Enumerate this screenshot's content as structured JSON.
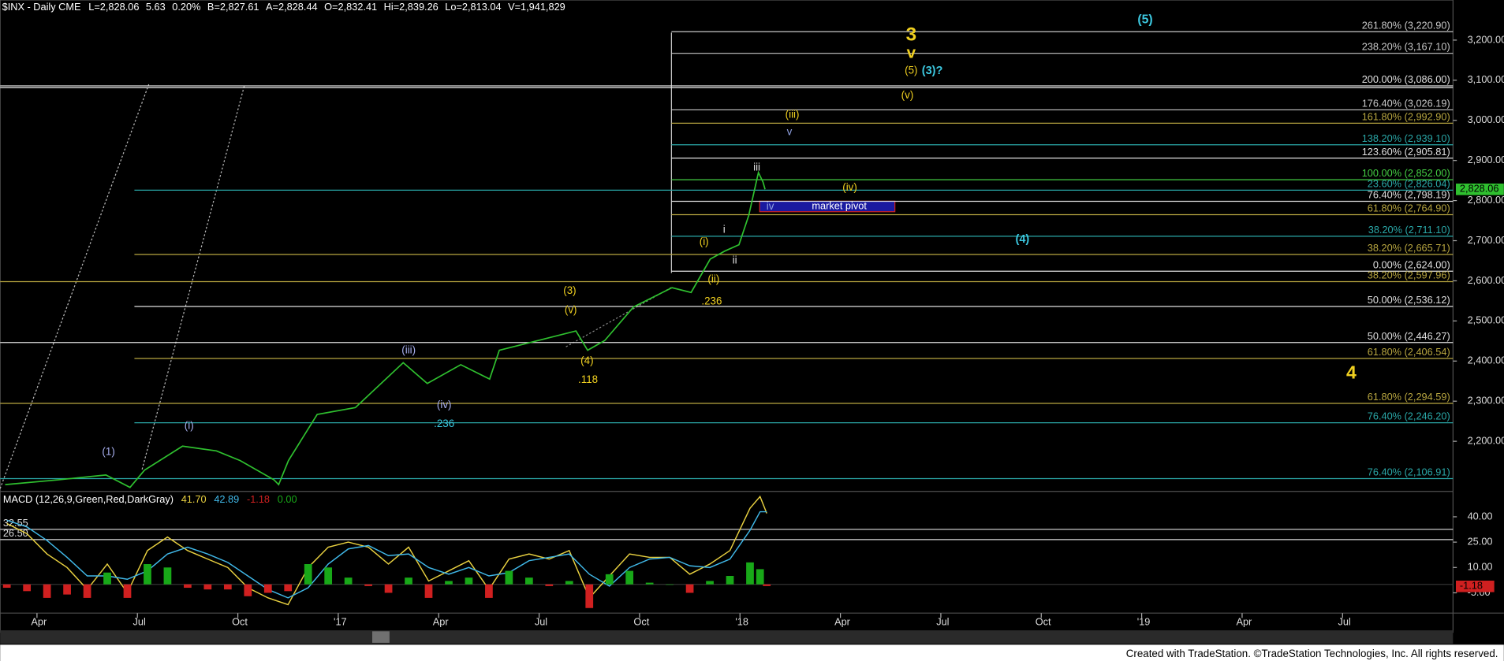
{
  "chart_data": [
    {
      "type": "line",
      "title": "$INX - Daily  CME",
      "header_fields": [
        "L=2,828.06",
        "5.63",
        "0.20%",
        "B=2,827.61",
        "A=2,828.44",
        "O=2,832.41",
        "Hi=2,839.26",
        "Lo=2,813.04",
        "V=1,941,829"
      ],
      "x": [
        2.05,
        3.63,
        5.06,
        5.78,
        6.21,
        7.35,
        8.36,
        9.07,
        10.08,
        10.22,
        10.51,
        11.37,
        12.51,
        13.94,
        14.66,
        15.66,
        16.52,
        16.81,
        17.96,
        19.1,
        19.45,
        19.96,
        20.82,
        21.97,
        22.54,
        23.11,
        23.54,
        23.97,
        24.26,
        24.55,
        24.69,
        24.75
      ],
      "series": [
        {
          "color": "#2fc02f",
          "values": [
            2092,
            2104,
            2116,
            2085,
            2128,
            2188,
            2176,
            2152,
            2104,
            2092,
            2152,
            2267,
            2284,
            2396,
            2344,
            2391,
            2355,
            2427,
            2451,
            2475,
            2427,
            2451,
            2535,
            2583,
            2571,
            2654,
            2674,
            2690,
            2762,
            2870,
            2846,
            2828.06
          ]
        }
      ],
      "last_value": {
        "value": 2828.06,
        "label": "2,828.06",
        "color": "#2fc02f"
      },
      "xlim": [
        1.9,
        45.3
      ],
      "xticks": [
        {
          "value": 3,
          "label": "Apr"
        },
        {
          "value": 6,
          "label": "Jul"
        },
        {
          "value": 9,
          "label": "Oct"
        },
        {
          "value": 12,
          "label": "'17"
        },
        {
          "value": 15,
          "label": "Apr"
        },
        {
          "value": 18,
          "label": "Jul"
        },
        {
          "value": 21,
          "label": "Oct"
        },
        {
          "value": 24,
          "label": "'18"
        },
        {
          "value": 27,
          "label": "Apr"
        },
        {
          "value": 30,
          "label": "Jul"
        },
        {
          "value": 33,
          "label": "Oct"
        },
        {
          "value": 36,
          "label": "'19"
        },
        {
          "value": 39,
          "label": "Apr"
        },
        {
          "value": 42,
          "label": "Jul"
        }
      ],
      "ylim": [
        2075,
        3300
      ],
      "yticks": [
        {
          "value": 2200,
          "label": "2,200.00"
        },
        {
          "value": 2300,
          "label": "2,300.00"
        },
        {
          "value": 2400,
          "label": "2,400.00"
        },
        {
          "value": 2500,
          "label": "2,500.00"
        },
        {
          "value": 2600,
          "label": "2,600.00"
        },
        {
          "value": 2700,
          "label": "2,700.00"
        },
        {
          "value": 2800,
          "label": "2,800.00"
        },
        {
          "value": 2900,
          "label": "2,900.00"
        },
        {
          "value": 3000,
          "label": "3,000.00"
        },
        {
          "value": 3100,
          "label": "3,100.00"
        },
        {
          "value": 3200,
          "label": "3,200.00"
        }
      ],
      "fib_levels": [
        {
          "value": 3220.9,
          "label": "261.80% (3,220.90)",
          "color": "#c8c8c8"
        },
        {
          "value": 3167.1,
          "label": "238.20% (3,167.10)",
          "color": "#c8c8c8"
        },
        {
          "value": 3086.0,
          "label": "200.00% (3,086.00)",
          "color": "#e0e0e0"
        },
        {
          "value": 3026.19,
          "label": "176.40% (3,026.19)",
          "color": "#c8c8c8"
        },
        {
          "value": 2992.9,
          "label": "161.80% (2,992.90)",
          "color": "#b8a640"
        },
        {
          "value": 2939.1,
          "label": "138.20% (2,939.10)",
          "color": "#2aa8a8"
        },
        {
          "value": 2905.81,
          "label": "123.60% (2,905.81)",
          "color": "#e0e0e0"
        },
        {
          "value": 2852.0,
          "label": "100.00% (2,852.00)",
          "color": "#44d044"
        },
        {
          "value": 2826.04,
          "label": "23.60% (2,826.04)",
          "color": "#2aa8a8"
        },
        {
          "value": 2798.19,
          "label": "76.40% (2,798.19)",
          "color": "#e0e0e0"
        },
        {
          "value": 2764.9,
          "label": "61.80% (2,764.90)",
          "color": "#b8a640"
        },
        {
          "value": 2711.1,
          "label": "38.20% (2,711.10)",
          "color": "#2aa8a8"
        },
        {
          "value": 2665.71,
          "label": "38.20% (2,665.71)",
          "color": "#b8a640"
        },
        {
          "value": 2624.0,
          "label": "0.00% (2,624.00)",
          "color": "#e0e0e0"
        },
        {
          "value": 2597.96,
          "label": "38.20% (2,597.96)",
          "color": "#b8a640"
        },
        {
          "value": 2536.12,
          "label": "50.00% (2,536.12)",
          "color": "#e0e0e0"
        },
        {
          "value": 2446.27,
          "label": "50.00% (2,446.27)",
          "color": "#e0e0e0"
        },
        {
          "value": 2406.54,
          "label": "61.80% (2,406.54)",
          "color": "#b8a640"
        },
        {
          "value": 2294.59,
          "label": "61.80% (2,294.59)",
          "color": "#b8a640"
        },
        {
          "value": 2246.2,
          "label": "76.40% (2,246.20)",
          "color": "#2aa8a8"
        },
        {
          "value": 2106.91,
          "label": "76.40% (2,106.91)",
          "color": "#2aa8a8"
        }
      ],
      "pivot_label": "market pivot",
      "annotations": [
        {
          "text": "(5)",
          "color": "#3cc8e0"
        },
        {
          "text": "3",
          "color": "#f0d020"
        },
        {
          "text": "v",
          "color": "#f0d020"
        },
        {
          "text": "(5)",
          "color": "#f0d020"
        },
        {
          "text": "(3)?",
          "color": "#3cc8e0"
        },
        {
          "text": "(v)",
          "color": "#f0d020"
        },
        {
          "text": "(iii)",
          "color": "#f0d020"
        },
        {
          "text": "v",
          "color": "#8fa0e0"
        },
        {
          "text": "iii",
          "color": "#e0e0e0"
        },
        {
          "text": "(iv)",
          "color": "#f0d020"
        },
        {
          "text": "iv",
          "color": "#8fa0e0"
        },
        {
          "text": "i",
          "color": "#e0e0e0"
        },
        {
          "text": "(i)",
          "color": "#f0d020"
        },
        {
          "text": "ii",
          "color": "#e0e0e0"
        },
        {
          "text": "(4)",
          "color": "#3cc8e0"
        },
        {
          "text": "(ii)",
          "color": "#f0d020"
        },
        {
          "text": ".236",
          "color": "#f0d020"
        },
        {
          "text": "(3)",
          "color": "#f0d020"
        },
        {
          "text": "(v)",
          "color": "#f0d020"
        },
        {
          "text": "(4)",
          "color": "#f0d020"
        },
        {
          "text": ".118",
          "color": "#f0d020"
        },
        {
          "text": "(iii)",
          "color": "#a8b0f0"
        },
        {
          "text": "(iv)",
          "color": "#a8b0f0"
        },
        {
          "text": ".236",
          "color": "#3cc8e0"
        },
        {
          "text": "(i)",
          "color": "#a8b0f0"
        },
        {
          "text": "(1)",
          "color": "#a8b0f0"
        },
        {
          "text": "4",
          "color": "#f0d020"
        }
      ]
    },
    {
      "type": "macd",
      "title": "MACD (12,26,9,Green,Red,DarkGray)",
      "x": [
        2.1,
        2.7,
        3.3,
        3.9,
        4.5,
        5.1,
        5.7,
        6.3,
        6.9,
        7.5,
        8.1,
        8.7,
        9.3,
        9.9,
        10.5,
        11.1,
        11.7,
        12.3,
        12.9,
        13.5,
        14.1,
        14.7,
        15.3,
        15.9,
        16.5,
        17.1,
        17.7,
        18.3,
        18.9,
        19.5,
        20.1,
        20.7,
        21.3,
        21.9,
        22.5,
        23.1,
        23.7,
        24.3,
        24.6,
        24.8
      ],
      "series": [
        {
          "kind": "line",
          "readout": "41.70",
          "color": "#e8d040",
          "values": [
            36,
            30,
            18,
            10,
            -3,
            12,
            -5,
            20,
            28,
            20,
            15,
            10,
            -2,
            -8,
            -12,
            10,
            22,
            25,
            22,
            12,
            22,
            2,
            8,
            14,
            -3,
            15,
            18,
            15,
            20,
            -8,
            5,
            18,
            16,
            16,
            6,
            12,
            20,
            45,
            52,
            42
          ]
        },
        {
          "kind": "line",
          "readout": "42.89",
          "color": "#40b8e8",
          "values": [
            38,
            34,
            26,
            16,
            5,
            5,
            3,
            8,
            18,
            22,
            18,
            13,
            5,
            -3,
            -8,
            -2,
            12,
            21,
            23,
            17,
            18,
            10,
            6,
            10,
            5,
            7,
            14,
            16,
            18,
            6,
            -1,
            10,
            15,
            16,
            11,
            10,
            15,
            32,
            43,
            43
          ]
        },
        {
          "kind": "histogram",
          "readout": "-1.18",
          "color": "#d02020",
          "up_color": "#18a818",
          "values": [
            -2,
            -4,
            -8,
            -6,
            -8,
            7,
            -8,
            12,
            10,
            -2,
            -3,
            -3,
            -7,
            -5,
            -4,
            12,
            10,
            4,
            -1,
            -5,
            4,
            -8,
            2,
            4,
            -8,
            8,
            4,
            -1,
            2,
            -14,
            6,
            8,
            1,
            0,
            -5,
            2,
            5,
            13,
            9,
            -1
          ],
          "last_value": {
            "value": -1.18,
            "label": "-1.18"
          }
        }
      ],
      "zero_line": {
        "value": 0,
        "label": "0.00",
        "color": "#18a818"
      },
      "ref_lines": [
        {
          "value": 32.55,
          "label": "32.55"
        },
        {
          "value": 26.5,
          "label": "26.50"
        }
      ],
      "ylim": [
        -17,
        55
      ],
      "yticks": [
        {
          "value": 40,
          "label": "40.00"
        },
        {
          "value": 25,
          "label": "25.00"
        },
        {
          "value": 10,
          "label": "10.00"
        },
        {
          "value": -5,
          "label": "-5.00"
        }
      ]
    }
  ],
  "footer": "Created with TradeStation. ©TradeStation Technologies, Inc. All rights reserved."
}
